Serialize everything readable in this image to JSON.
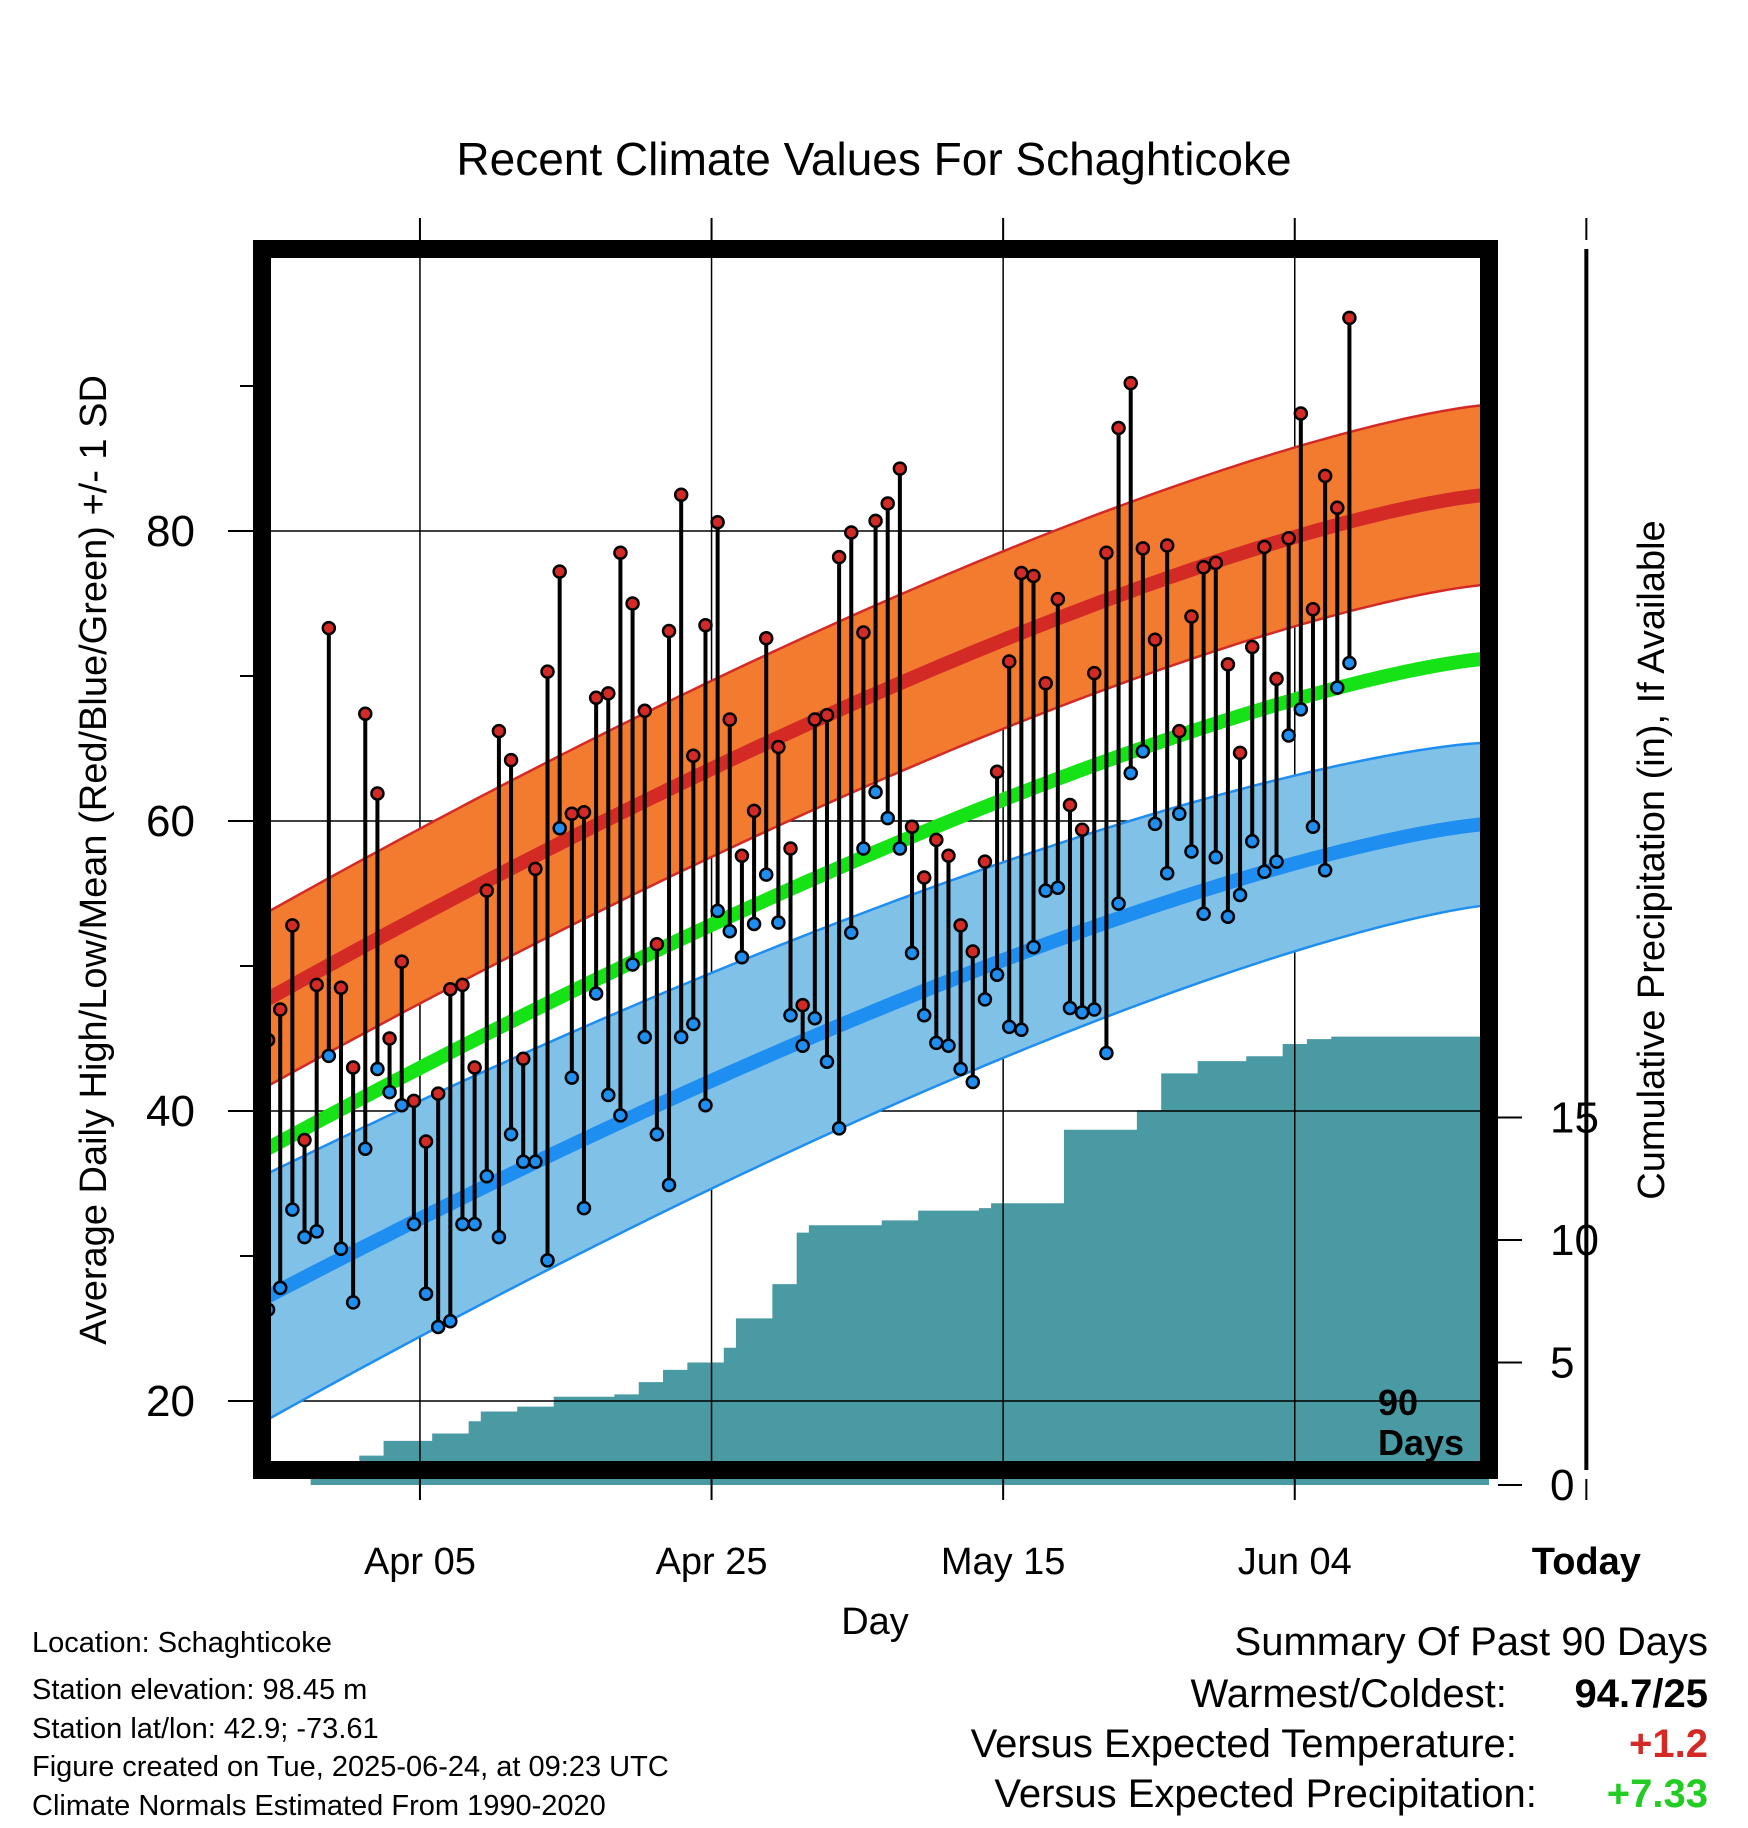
{
  "chart_data": {
    "type": "line",
    "title": "Recent Climate Values For Schaghticoke",
    "xlabel": "Day",
    "ylabel_left": "Average Daily High/Low/Mean (Red/Blue/Green) +/- 1 SD",
    "ylabel_right": "Cumulative Precipitation (in), If Available",
    "x_tick_labels": [
      "Apr 05",
      "Apr 25",
      "May 15",
      "Jun 04",
      "Today"
    ],
    "y_left_ticks": [
      "20",
      "40",
      "60",
      "80"
    ],
    "y_right_ticks": [
      "0",
      "5",
      "10",
      "15"
    ],
    "today_marker_label": "90 Days",
    "colors": {
      "high_band": "#f27b30",
      "high_normal": "#d42a26",
      "low_band": "#80c1e8",
      "low_normal": "#1e8ef0",
      "mean_normal": "#16e316",
      "precip_fill": "#4a9aa3",
      "high_point": "#d42a26",
      "low_point": "#1e8ef0"
    },
    "daily_highs": [
      44.9,
      47,
      52.8,
      38,
      48.7,
      73.3,
      48.5,
      43,
      67.4,
      61.9,
      45,
      50.3,
      40.7,
      37.9,
      41.2,
      48.4,
      48.7,
      43,
      55.2,
      66.2,
      64.2,
      43.6,
      56.7,
      70.3,
      77.2,
      60.5,
      60.6,
      68.5,
      68.8,
      78.5,
      75,
      67.6,
      51.5,
      73.1,
      82.5,
      64.5,
      73.5,
      80.6,
      67,
      57.6,
      60.7,
      72.6,
      65.1,
      58.1,
      47.3,
      67,
      67.3,
      78.2,
      79.9,
      73,
      80.7,
      81.9,
      84.3,
      59.6,
      56.1,
      58.7,
      57.6,
      52.8,
      51,
      57.2,
      63.4,
      71,
      77.1,
      76.9,
      69.5,
      75.3,
      61.1,
      59.4,
      70.2,
      78.5,
      87.1,
      90.2,
      78.8,
      72.5,
      79,
      66.2,
      74.1,
      77.5,
      77.8,
      70.8,
      64.7,
      72,
      78.9,
      69.8,
      79.5,
      88.1,
      74.6,
      83.8,
      81.6,
      94.7
    ],
    "daily_lows": [
      26.3,
      27.8,
      33.2,
      31.3,
      31.7,
      43.8,
      30.5,
      26.8,
      37.4,
      42.9,
      41.3,
      40.4,
      32.2,
      27.4,
      25.1,
      25.5,
      32.2,
      32.2,
      35.5,
      31.3,
      38.4,
      36.5,
      36.5,
      29.7,
      59.5,
      42.3,
      33.3,
      48.1,
      41.1,
      39.7,
      50.1,
      45.1,
      38.4,
      34.9,
      45.1,
      46,
      40.4,
      53.8,
      52.4,
      50.6,
      52.9,
      56.3,
      53,
      46.6,
      44.5,
      46.4,
      43.4,
      38.8,
      52.3,
      58.1,
      62,
      60.2,
      58.1,
      50.9,
      46.6,
      44.7,
      44.5,
      42.9,
      42,
      47.7,
      49.4,
      45.8,
      45.6,
      51.3,
      55.2,
      55.4,
      47.1,
      46.8,
      47,
      44,
      54.3,
      63.3,
      64.8,
      59.8,
      56.4,
      60.5,
      57.9,
      53.6,
      57.5,
      53.4,
      54.9,
      58.6,
      56.5,
      57.2,
      65.9,
      67.7,
      59.6,
      56.6,
      69.2,
      70.9
    ],
    "normal_high_start_end": [
      47.5,
      82.5
    ],
    "normal_low_start_end": [
      27.0,
      59.8
    ],
    "normal_mean_start_end": [
      37.2,
      71.2
    ],
    "sd_high_start_end": [
      6.0,
      6.2
    ],
    "sd_low_start_end": [
      8.5,
      5.6
    ],
    "cumulative_precip_steps": [
      [
        0,
        0
      ],
      [
        4,
        0.25
      ],
      [
        8,
        1.2
      ],
      [
        10,
        1.8
      ],
      [
        14,
        2.1
      ],
      [
        17,
        2.6
      ],
      [
        18,
        3
      ],
      [
        21,
        3.2
      ],
      [
        24,
        3.6
      ],
      [
        29,
        3.7
      ],
      [
        31,
        4.2
      ],
      [
        33,
        4.7
      ],
      [
        35,
        5
      ],
      [
        38,
        5.6
      ],
      [
        39,
        6.8
      ],
      [
        42,
        8.2
      ],
      [
        44,
        10.3
      ],
      [
        45,
        10.6
      ],
      [
        51,
        10.8
      ],
      [
        54,
        11.2
      ],
      [
        59,
        11.3
      ],
      [
        60,
        11.5
      ],
      [
        66,
        14.5
      ],
      [
        72,
        15.3
      ],
      [
        74,
        16.8
      ],
      [
        77,
        17.3
      ],
      [
        81,
        17.5
      ],
      [
        84,
        18
      ],
      [
        86,
        18.2
      ],
      [
        88,
        18.3
      ],
      [
        97,
        18.3
      ]
    ]
  },
  "location_text": "Location: Schaghticoke",
  "elevation_text": "Station elevation: 98.45 m",
  "latlon_text": "Station lat/lon: 42.9; -73.61",
  "created_text": "Figure created on Tue, 2025-06-24, at 09:23 UTC",
  "normals_text": "Climate Normals Estimated From 1990-2020",
  "summary": {
    "title": "Summary Of Past 90 Days",
    "warmest_coldest_label": "Warmest/Coldest:",
    "warmest_coldest_value": "94.7/25",
    "temp_label": "Versus Expected Temperature:",
    "temp_value": "+1.2",
    "temp_color": "#d42a26",
    "precip_label": "Versus Expected Precipitation:",
    "precip_value": "+7.33",
    "precip_color": "#22cc22"
  }
}
